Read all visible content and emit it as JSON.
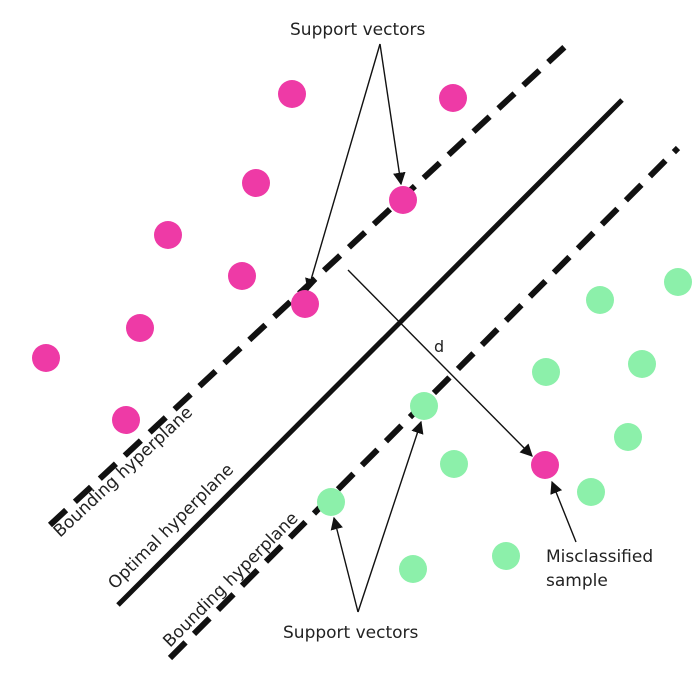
{
  "labels": {
    "support_vectors_top": "Support vectors",
    "support_vectors_bottom": "Support vectors",
    "bounding_upper": "Bounding hyperplane",
    "bounding_lower": "Bounding hyperplane",
    "optimal": "Optimal hyperplane",
    "margin_d": "d",
    "misclassified_line1": "Misclassified",
    "misclassified_line2": "sample"
  },
  "colors": {
    "class_a": "#ee3aa6",
    "class_b": "#8cf0aa",
    "line": "#111111"
  }
}
